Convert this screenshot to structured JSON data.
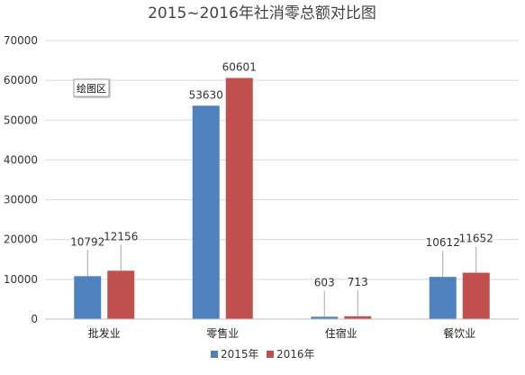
{
  "chart_data": {
    "type": "bar",
    "title": "2015~2016年社消零总额对比图",
    "categories": [
      "批发业",
      "零售业",
      "住宿业",
      "餐饮业"
    ],
    "series": [
      {
        "name": "2015年",
        "color": "#4f81bd",
        "values": [
          10792,
          53630,
          603,
          10612
        ]
      },
      {
        "name": "2016年",
        "color": "#c0504d",
        "values": [
          12156,
          60601,
          713,
          11652
        ]
      }
    ],
    "ylim": [
      0,
      70000
    ],
    "yticks": [
      "0",
      "10000",
      "20000",
      "30000",
      "40000",
      "50000",
      "60000",
      "70000"
    ],
    "grid": true,
    "legend_position": "bottom",
    "annotation": "绘图区",
    "leader_line_color": "#a6a6a6"
  }
}
